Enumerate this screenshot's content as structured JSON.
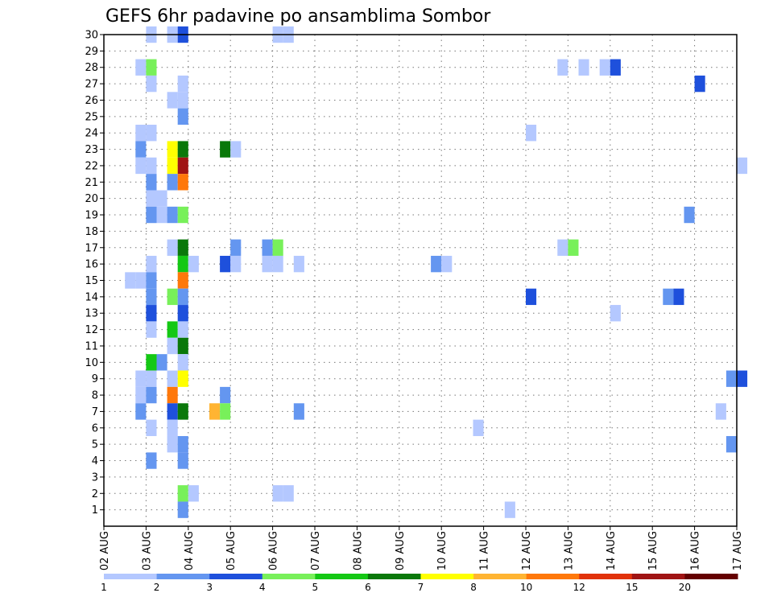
{
  "chart_data": {
    "type": "heatmap",
    "title": "GEFS 6hr padavine po ansamblima Sombor",
    "xlabel": "",
    "ylabel": "",
    "x_ticks": [
      "02 AUG",
      "03 AUG",
      "04 AUG",
      "05 AUG",
      "06 AUG",
      "07 AUG",
      "08 AUG",
      "09 AUG",
      "10 AUG",
      "11 AUG",
      "12 AUG",
      "13 AUG",
      "14 AUG",
      "15 AUG",
      "16 AUG",
      "17 AUG"
    ],
    "y_ticks": [
      "1",
      "2",
      "3",
      "4",
      "5",
      "6",
      "7",
      "8",
      "9",
      "10",
      "11",
      "12",
      "13",
      "14",
      "15",
      "16",
      "17",
      "18",
      "19",
      "20",
      "21",
      "22",
      "23",
      "24",
      "25",
      "26",
      "27",
      "28",
      "29",
      "30"
    ],
    "x_range_days": [
      0,
      15
    ],
    "y_range": [
      0,
      30
    ],
    "grid": true,
    "colorbar": {
      "labels": [
        "1",
        "2",
        "3",
        "4",
        "5",
        "6",
        "7",
        "8",
        "10",
        "12",
        "15",
        "20"
      ],
      "colors": [
        "#b4c8ff",
        "#6496f0",
        "#1e50dc",
        "#78f05a",
        "#14c814",
        "#0a780a",
        "#ffff00",
        "#ffb432",
        "#ff780a",
        "#e1320a",
        "#a01414",
        "#640000"
      ]
    },
    "cells": [
      {
        "t": 1.0,
        "m": 30,
        "v": 1.2
      },
      {
        "t": 1.5,
        "m": 30,
        "v": 1.2
      },
      {
        "t": 1.75,
        "m": 30,
        "v": 3
      },
      {
        "t": 4.0,
        "m": 30,
        "v": 1.2
      },
      {
        "t": 4.25,
        "m": 30,
        "v": 1.2
      },
      {
        "t": 0.75,
        "m": 28,
        "v": 1.2
      },
      {
        "t": 1.0,
        "m": 28,
        "v": 4.5
      },
      {
        "t": 10.75,
        "m": 28,
        "v": 1.2
      },
      {
        "t": 11.25,
        "m": 28,
        "v": 1.2
      },
      {
        "t": 11.75,
        "m": 28,
        "v": 1.2
      },
      {
        "t": 12.0,
        "m": 28,
        "v": 3
      },
      {
        "t": 1.0,
        "m": 27,
        "v": 1.2
      },
      {
        "t": 1.75,
        "m": 27,
        "v": 1.2
      },
      {
        "t": 14.0,
        "m": 27,
        "v": 3
      },
      {
        "t": 1.5,
        "m": 26,
        "v": 1.2
      },
      {
        "t": 1.75,
        "m": 26,
        "v": 1.2
      },
      {
        "t": 1.75,
        "m": 25,
        "v": 2.5
      },
      {
        "t": 0.75,
        "m": 24,
        "v": 1.2
      },
      {
        "t": 1.0,
        "m": 24,
        "v": 1.2
      },
      {
        "t": 10.0,
        "m": 24,
        "v": 1.2
      },
      {
        "t": 0.75,
        "m": 23,
        "v": 2.5
      },
      {
        "t": 1.5,
        "m": 23,
        "v": 7.5
      },
      {
        "t": 1.75,
        "m": 23,
        "v": 6.5
      },
      {
        "t": 2.75,
        "m": 23,
        "v": 6.5
      },
      {
        "t": 3.0,
        "m": 23,
        "v": 1.2
      },
      {
        "t": 0.75,
        "m": 22,
        "v": 1.2
      },
      {
        "t": 1.0,
        "m": 22,
        "v": 1.2
      },
      {
        "t": 1.5,
        "m": 22,
        "v": 7.5
      },
      {
        "t": 1.75,
        "m": 22,
        "v": 16
      },
      {
        "t": 15.0,
        "m": 22,
        "v": 1.2
      },
      {
        "t": 1.0,
        "m": 21,
        "v": 2.5
      },
      {
        "t": 1.5,
        "m": 21,
        "v": 2.5
      },
      {
        "t": 1.75,
        "m": 21,
        "v": 11
      },
      {
        "t": 1.0,
        "m": 20,
        "v": 1.2
      },
      {
        "t": 1.25,
        "m": 20,
        "v": 1.2
      },
      {
        "t": 1.0,
        "m": 19,
        "v": 2.5
      },
      {
        "t": 1.25,
        "m": 19,
        "v": 1.2
      },
      {
        "t": 1.5,
        "m": 19,
        "v": 2.5
      },
      {
        "t": 1.75,
        "m": 19,
        "v": 4.5
      },
      {
        "t": 13.75,
        "m": 19,
        "v": 2.5
      },
      {
        "t": 1.5,
        "m": 17,
        "v": 1.2
      },
      {
        "t": 1.75,
        "m": 17,
        "v": 6.5
      },
      {
        "t": 3.0,
        "m": 17,
        "v": 2.5
      },
      {
        "t": 3.75,
        "m": 17,
        "v": 2.5
      },
      {
        "t": 4.0,
        "m": 17,
        "v": 4.5
      },
      {
        "t": 10.75,
        "m": 17,
        "v": 1.2
      },
      {
        "t": 11.0,
        "m": 17,
        "v": 4.5
      },
      {
        "t": 1.0,
        "m": 16,
        "v": 1.2
      },
      {
        "t": 1.75,
        "m": 16,
        "v": 5.5
      },
      {
        "t": 2.0,
        "m": 16,
        "v": 1.2
      },
      {
        "t": 2.75,
        "m": 16,
        "v": 3
      },
      {
        "t": 3.0,
        "m": 16,
        "v": 1.2
      },
      {
        "t": 3.75,
        "m": 16,
        "v": 1.2
      },
      {
        "t": 4.0,
        "m": 16,
        "v": 1.2
      },
      {
        "t": 4.5,
        "m": 16,
        "v": 1.2
      },
      {
        "t": 7.75,
        "m": 16,
        "v": 2.5
      },
      {
        "t": 8.0,
        "m": 16,
        "v": 1.2
      },
      {
        "t": 0.5,
        "m": 15,
        "v": 1.2
      },
      {
        "t": 0.75,
        "m": 15,
        "v": 1.2
      },
      {
        "t": 1.0,
        "m": 15,
        "v": 2.5
      },
      {
        "t": 1.75,
        "m": 15,
        "v": 11
      },
      {
        "t": 1.0,
        "m": 14,
        "v": 2.5
      },
      {
        "t": 1.5,
        "m": 14,
        "v": 4.5
      },
      {
        "t": 1.75,
        "m": 14,
        "v": 2.5
      },
      {
        "t": 10.0,
        "m": 14,
        "v": 3
      },
      {
        "t": 13.25,
        "m": 14,
        "v": 2.5
      },
      {
        "t": 13.5,
        "m": 14,
        "v": 3
      },
      {
        "t": 1.0,
        "m": 13,
        "v": 3
      },
      {
        "t": 1.75,
        "m": 13,
        "v": 3
      },
      {
        "t": 12.0,
        "m": 13,
        "v": 1.2
      },
      {
        "t": 1.0,
        "m": 12,
        "v": 1.2
      },
      {
        "t": 1.5,
        "m": 12,
        "v": 5.5
      },
      {
        "t": 1.75,
        "m": 12,
        "v": 1.2
      },
      {
        "t": 1.5,
        "m": 11,
        "v": 1.2
      },
      {
        "t": 1.75,
        "m": 11,
        "v": 6.5
      },
      {
        "t": 1.0,
        "m": 10,
        "v": 5.5
      },
      {
        "t": 1.25,
        "m": 10,
        "v": 2.5
      },
      {
        "t": 1.75,
        "m": 10,
        "v": 1.2
      },
      {
        "t": 0.75,
        "m": 9,
        "v": 1.2
      },
      {
        "t": 1.0,
        "m": 9,
        "v": 1.2
      },
      {
        "t": 1.5,
        "m": 9,
        "v": 1.2
      },
      {
        "t": 1.75,
        "m": 9,
        "v": 7.5
      },
      {
        "t": 14.75,
        "m": 9,
        "v": 2.5
      },
      {
        "t": 15.0,
        "m": 9,
        "v": 3
      },
      {
        "t": 0.75,
        "m": 8,
        "v": 1.2
      },
      {
        "t": 1.0,
        "m": 8,
        "v": 2.5
      },
      {
        "t": 1.5,
        "m": 8,
        "v": 11
      },
      {
        "t": 2.75,
        "m": 8,
        "v": 2.5
      },
      {
        "t": 0.75,
        "m": 7,
        "v": 2.5
      },
      {
        "t": 1.5,
        "m": 7,
        "v": 3
      },
      {
        "t": 1.75,
        "m": 7,
        "v": 6.5
      },
      {
        "t": 2.5,
        "m": 7,
        "v": 9
      },
      {
        "t": 2.75,
        "m": 7,
        "v": 4.5
      },
      {
        "t": 4.5,
        "m": 7,
        "v": 2.5
      },
      {
        "t": 14.5,
        "m": 7,
        "v": 1.2
      },
      {
        "t": 1.0,
        "m": 6,
        "v": 1.2
      },
      {
        "t": 1.5,
        "m": 6,
        "v": 1.2
      },
      {
        "t": 8.75,
        "m": 6,
        "v": 1.2
      },
      {
        "t": 1.5,
        "m": 5,
        "v": 1.2
      },
      {
        "t": 1.75,
        "m": 5,
        "v": 2.5
      },
      {
        "t": 14.75,
        "m": 5,
        "v": 2.5
      },
      {
        "t": 1.0,
        "m": 4,
        "v": 2.5
      },
      {
        "t": 1.75,
        "m": 4,
        "v": 2.5
      },
      {
        "t": 1.75,
        "m": 2,
        "v": 4.5
      },
      {
        "t": 2.0,
        "m": 2,
        "v": 1.2
      },
      {
        "t": 4.0,
        "m": 2,
        "v": 1.2
      },
      {
        "t": 4.25,
        "m": 2,
        "v": 1.2
      },
      {
        "t": 1.75,
        "m": 1,
        "v": 2.5
      },
      {
        "t": 9.5,
        "m": 1,
        "v": 1.2
      }
    ]
  }
}
